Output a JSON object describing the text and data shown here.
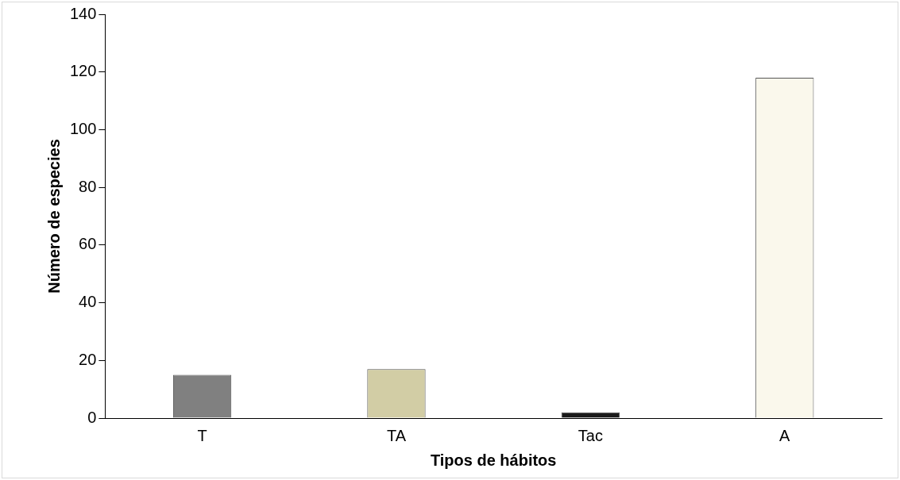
{
  "chart_data": {
    "type": "bar",
    "xlabel": "Tipos de hábitos",
    "ylabel": "Número de especies",
    "categories": [
      "T",
      "TA",
      "Tac",
      "A"
    ],
    "values": [
      15,
      17,
      2,
      118
    ],
    "colors": [
      "#808080",
      "#d2cda5",
      "#1a1a1a",
      "#faf8ec"
    ],
    "ylim": [
      0,
      140
    ],
    "yticks": [
      0,
      20,
      40,
      60,
      80,
      100,
      120,
      140
    ],
    "grid": false,
    "legend": false
  }
}
